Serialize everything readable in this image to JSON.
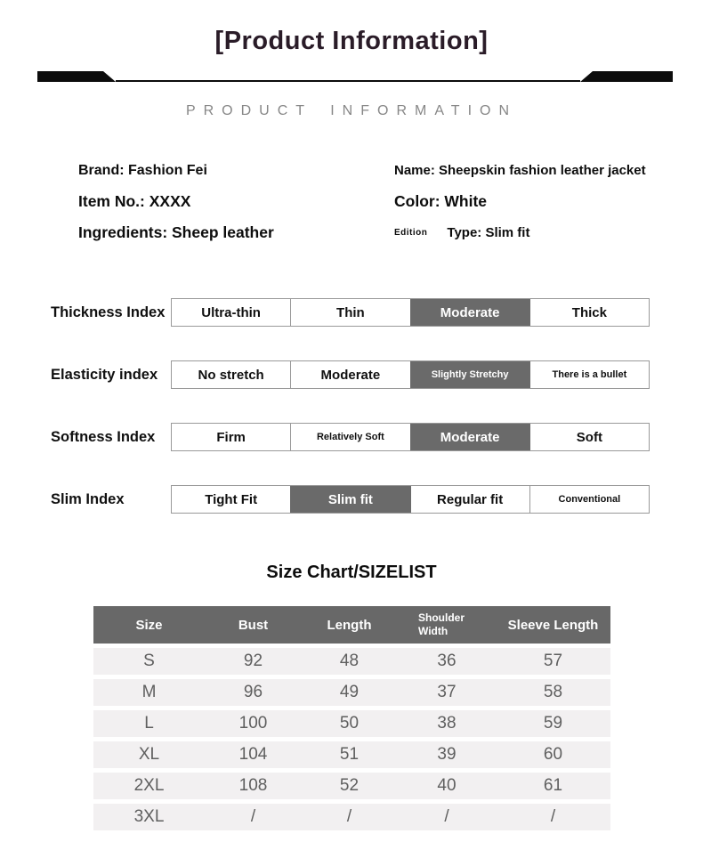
{
  "header": {
    "title": "[Product Information]",
    "subtitle": "PRODUCT INFORMATION"
  },
  "product": {
    "brand": "Brand: Fashion Fei",
    "item_no": "Item No.: XXXX",
    "ingredients": "Ingredients: Sheep leather",
    "name": "Name: Sheepskin fashion leather jacket",
    "color": "Color: White",
    "edition_label": "Edition",
    "type": "Type: Slim fit"
  },
  "indexes": [
    {
      "label": "Thickness Index",
      "cells": [
        {
          "text": "Ultra-thin",
          "selected": false
        },
        {
          "text": "Thin",
          "selected": false
        },
        {
          "text": "Moderate",
          "selected": true
        },
        {
          "text": "Thick",
          "selected": false
        }
      ]
    },
    {
      "label": "Elasticity index",
      "cells": [
        {
          "text": "No stretch",
          "selected": false
        },
        {
          "text": "Moderate",
          "selected": false
        },
        {
          "text": "Slightly Stretchy",
          "selected": true
        },
        {
          "text": "There is a bullet",
          "selected": false
        }
      ]
    },
    {
      "label": "Softness Index",
      "cells": [
        {
          "text": "Firm",
          "selected": false
        },
        {
          "text": "Relatively Soft",
          "selected": false
        },
        {
          "text": "Moderate",
          "selected": true
        },
        {
          "text": "Soft",
          "selected": false
        }
      ]
    },
    {
      "label": "Slim Index",
      "cells": [
        {
          "text": "Tight Fit",
          "selected": false
        },
        {
          "text": "Slim fit",
          "selected": true
        },
        {
          "text": "Regular fit",
          "selected": false
        },
        {
          "text": "Conventional",
          "selected": false
        }
      ]
    }
  ],
  "size_chart": {
    "title": "Size Chart/SIZELIST",
    "columns": [
      "Size",
      "Bust",
      "Length",
      "Shoulder Width",
      "Sleeve Length"
    ],
    "rows": [
      [
        "S",
        "92",
        "48",
        "36",
        "57"
      ],
      [
        "M",
        "96",
        "49",
        "37",
        "58"
      ],
      [
        "L",
        "100",
        "50",
        "38",
        "59"
      ],
      [
        "XL",
        "104",
        "51",
        "39",
        "60"
      ],
      [
        "2XL",
        "108",
        "52",
        "40",
        "61"
      ],
      [
        "3XL",
        "/",
        "/",
        "/",
        "/"
      ]
    ]
  },
  "colors": {
    "title_text": "#2a1c28",
    "divider_bar": "#0c0c0c",
    "subtitle_text": "#878787",
    "highlight_cell_bg": "#6a6a6a",
    "highlight_cell_text": "#ffffff",
    "table_border": "#999999",
    "size_header_bg": "#686868",
    "size_row_bg": "#f2f0f1",
    "size_data_text": "#5f5f5f"
  }
}
